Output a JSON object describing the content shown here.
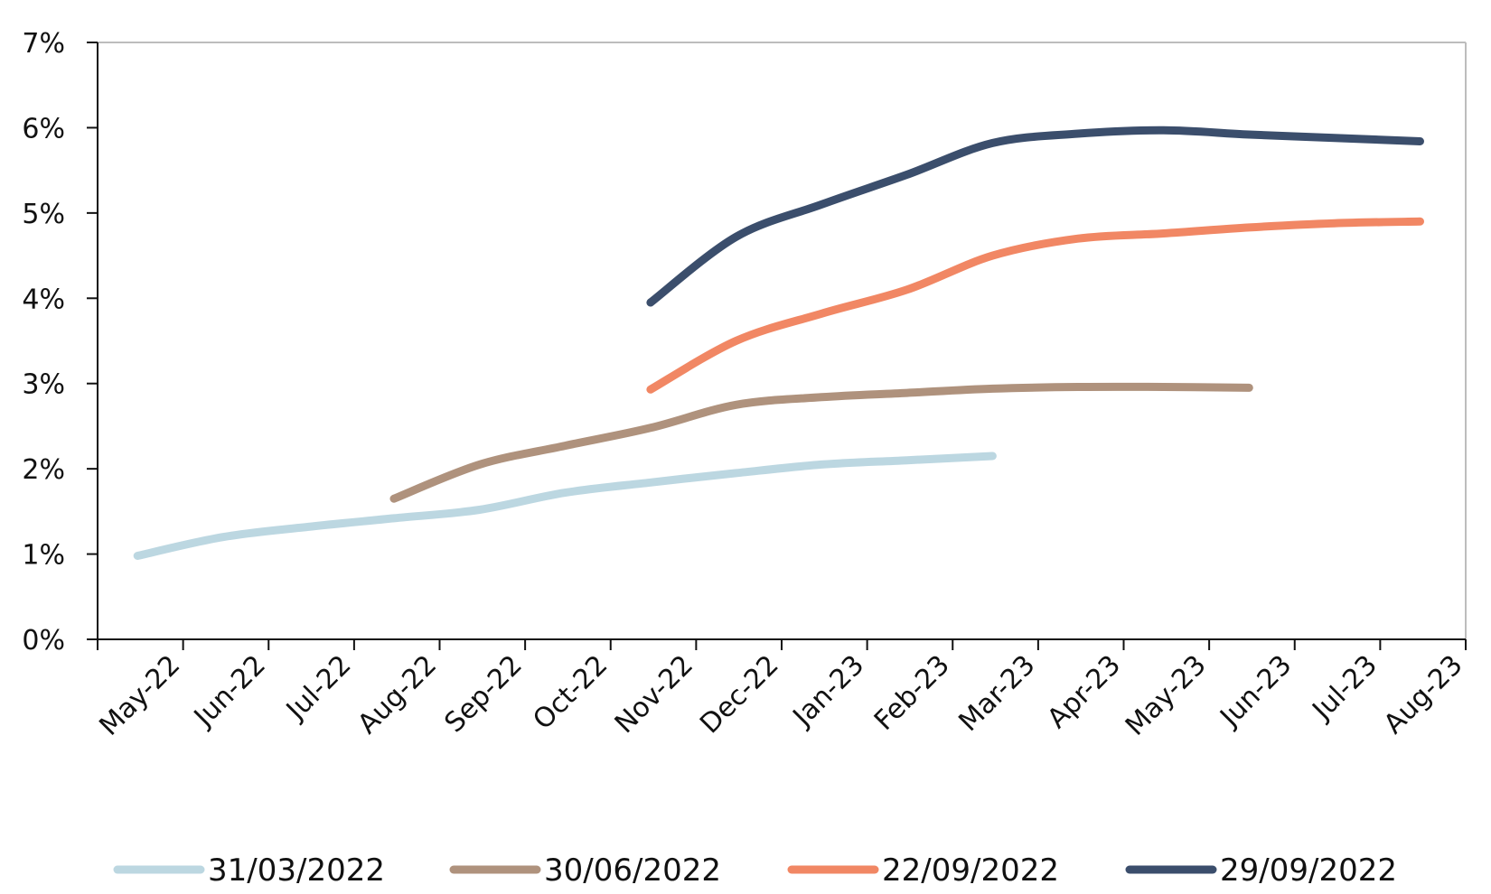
{
  "chart_data": {
    "type": "line",
    "title": "",
    "xlabel": "",
    "ylabel": "",
    "x_ticks": [
      "May-22",
      "Jun-22",
      "Jul-22",
      "Aug-22",
      "Sep-22",
      "Oct-22",
      "Nov-22",
      "Dec-22",
      "Jan-23",
      "Feb-23",
      "Mar-23",
      "Apr-23",
      "May-23",
      "Jun-23",
      "Jul-23",
      "Aug-23"
    ],
    "y_ticks": [
      "0%",
      "1%",
      "2%",
      "3%",
      "4%",
      "5%",
      "6%",
      "7%"
    ],
    "ylim": [
      0,
      7
    ],
    "grid": false,
    "legend_position": "bottom",
    "series": [
      {
        "name": "31/03/2022",
        "color": "#bcd7e1",
        "x": [
          "2022-04-15",
          "2022-05-15",
          "2022-06-15",
          "2022-07-15",
          "2022-08-15",
          "2022-09-15",
          "2022-10-15",
          "2022-11-15",
          "2022-12-15",
          "2023-01-15",
          "2023-02-15"
        ],
        "y": [
          0.98,
          1.2,
          1.32,
          1.42,
          1.52,
          1.72,
          1.84,
          1.95,
          2.05,
          2.1,
          2.15
        ]
      },
      {
        "name": "30/06/2022",
        "color": "#af927d",
        "x": [
          "2022-07-15",
          "2022-08-15",
          "2022-09-15",
          "2022-10-15",
          "2022-11-15",
          "2022-12-15",
          "2023-01-15",
          "2023-02-15",
          "2023-03-15",
          "2023-04-15",
          "2023-05-15"
        ],
        "y": [
          1.65,
          2.05,
          2.27,
          2.48,
          2.75,
          2.84,
          2.89,
          2.94,
          2.96,
          2.96,
          2.95
        ]
      },
      {
        "name": "22/09/2022",
        "color": "#f18764",
        "x": [
          "2022-10-15",
          "2022-11-15",
          "2022-12-15",
          "2023-01-15",
          "2023-02-15",
          "2023-03-15",
          "2023-04-15",
          "2023-05-15",
          "2023-06-15",
          "2023-07-15"
        ],
        "y": [
          2.93,
          3.5,
          3.82,
          4.1,
          4.5,
          4.7,
          4.76,
          4.83,
          4.88,
          4.9
        ]
      },
      {
        "name": "29/09/2022",
        "color": "#3b4e6c",
        "x": [
          "2022-10-15",
          "2022-11-15",
          "2022-12-15",
          "2023-01-15",
          "2023-02-15",
          "2023-03-15",
          "2023-04-15",
          "2023-05-15",
          "2023-06-15",
          "2023-07-15"
        ],
        "y": [
          3.95,
          4.72,
          5.1,
          5.45,
          5.82,
          5.93,
          5.97,
          5.92,
          5.88,
          5.84
        ]
      }
    ]
  }
}
